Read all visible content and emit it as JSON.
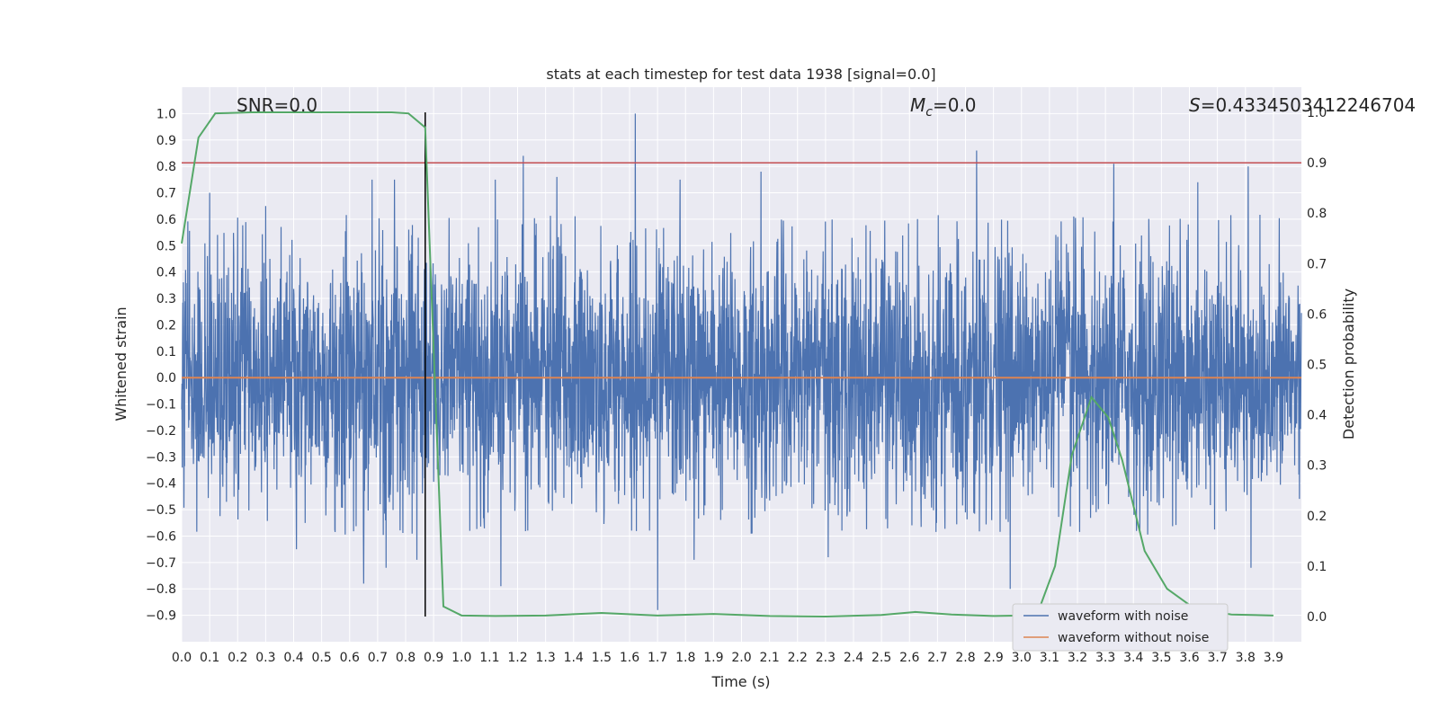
{
  "chart_data": {
    "type": "line",
    "title": "stats at each timestep for test data 1938 [signal=0.0]",
    "xlabel": "Time (s)",
    "ylabel_left": "Whitened strain",
    "ylabel_right": "Detection probability",
    "xlim": [
      0.0,
      4.0
    ],
    "ylim_left": [
      -1.0,
      1.1
    ],
    "ylim_right": [
      -0.05,
      1.05
    ],
    "x_ticks": [
      "0.0",
      "0.1",
      "0.2",
      "0.3",
      "0.4",
      "0.5",
      "0.6",
      "0.7",
      "0.8",
      "0.9",
      "1.0",
      "1.1",
      "1.2",
      "1.3",
      "1.4",
      "1.5",
      "1.6",
      "1.7",
      "1.8",
      "1.9",
      "2.0",
      "2.1",
      "2.2",
      "2.3",
      "2.4",
      "2.5",
      "2.6",
      "2.7",
      "2.8",
      "2.9",
      "3.0",
      "3.1",
      "3.2",
      "3.3",
      "3.4",
      "3.5",
      "3.6",
      "3.7",
      "3.8",
      "3.9"
    ],
    "y_ticks_left": [
      "1.0",
      "0.9",
      "0.8",
      "0.7",
      "0.6",
      "0.5",
      "0.4",
      "0.3",
      "0.2",
      "0.1",
      "0.0",
      "−0.1",
      "−0.2",
      "−0.3",
      "−0.4",
      "−0.5",
      "−0.6",
      "−0.7",
      "−0.8",
      "−0.9"
    ],
    "y_ticks_right": [
      "1.0",
      "0.9",
      "0.8",
      "0.7",
      "0.6",
      "0.5",
      "0.4",
      "0.3",
      "0.2",
      "0.1",
      "0.0"
    ],
    "annotations": {
      "snr": "SNR=0.0",
      "mc_symbol": "M",
      "mc_sub": "c",
      "mc_value": "=0.0",
      "s_symbol": "S",
      "s_value": "=0.4334503412246704"
    },
    "threshold_right": 0.9,
    "marker_time": 0.87,
    "noise_profile": {
      "sample_count": 4000,
      "amplitude_typical": 0.4,
      "seed": 1938,
      "spikes": [
        {
          "x": 0.1,
          "y": 0.7
        },
        {
          "x": 0.3,
          "y": 0.65
        },
        {
          "x": 0.68,
          "y": 0.75
        },
        {
          "x": 0.76,
          "y": 0.75
        },
        {
          "x": 1.12,
          "y": 0.75
        },
        {
          "x": 1.22,
          "y": 0.84
        },
        {
          "x": 1.34,
          "y": 0.76
        },
        {
          "x": 1.62,
          "y": 1.0
        },
        {
          "x": 1.78,
          "y": 0.75
        },
        {
          "x": 2.07,
          "y": 0.78
        },
        {
          "x": 2.84,
          "y": 0.86
        },
        {
          "x": 3.33,
          "y": 0.81
        },
        {
          "x": 3.81,
          "y": 0.8
        },
        {
          "x": 3.63,
          "y": 0.74
        },
        {
          "x": 0.73,
          "y": -0.72
        },
        {
          "x": 0.84,
          "y": -0.69
        },
        {
          "x": 1.14,
          "y": -0.79
        },
        {
          "x": 1.7,
          "y": -0.88
        },
        {
          "x": 2.96,
          "y": -0.8
        },
        {
          "x": 3.82,
          "y": -0.72
        },
        {
          "x": 0.65,
          "y": -0.78
        },
        {
          "x": 1.83,
          "y": -0.69
        },
        {
          "x": 0.41,
          "y": -0.65
        },
        {
          "x": 2.31,
          "y": -0.68
        }
      ]
    },
    "series": [
      {
        "name": "waveform with noise",
        "color": "#4c72b0",
        "axis": "left",
        "description": "dense noise trace"
      },
      {
        "name": "waveform without noise",
        "color": "#dd8452",
        "axis": "left",
        "x": [
          0.0,
          4.0
        ],
        "y": [
          0.0,
          0.0
        ]
      },
      {
        "name": "detection probability",
        "color": "#55a868",
        "axis": "right",
        "x": [
          0.0,
          0.06,
          0.12,
          0.25,
          0.5,
          0.75,
          0.81,
          0.87,
          0.935,
          1.0,
          1.12,
          1.3,
          1.5,
          1.7,
          1.9,
          2.1,
          2.3,
          2.5,
          2.62,
          2.75,
          2.9,
          3.0,
          3.06,
          3.12,
          3.18,
          3.25,
          3.31,
          3.36,
          3.44,
          3.52,
          3.62,
          3.75,
          3.9
        ],
        "y": [
          0.74,
          0.95,
          0.998,
          1.0,
          1.0,
          1.0,
          0.998,
          0.97,
          0.02,
          0.002,
          0.001,
          0.002,
          0.007,
          0.002,
          0.005,
          0.001,
          0.0,
          0.003,
          0.009,
          0.004,
          0.001,
          0.002,
          0.01,
          0.1,
          0.32,
          0.435,
          0.395,
          0.31,
          0.13,
          0.055,
          0.015,
          0.004,
          0.002
        ]
      }
    ],
    "threshold_color": "#c44e52",
    "legend": {
      "position": "lower-right",
      "entries": [
        "waveform with noise",
        "waveform without noise"
      ]
    }
  }
}
